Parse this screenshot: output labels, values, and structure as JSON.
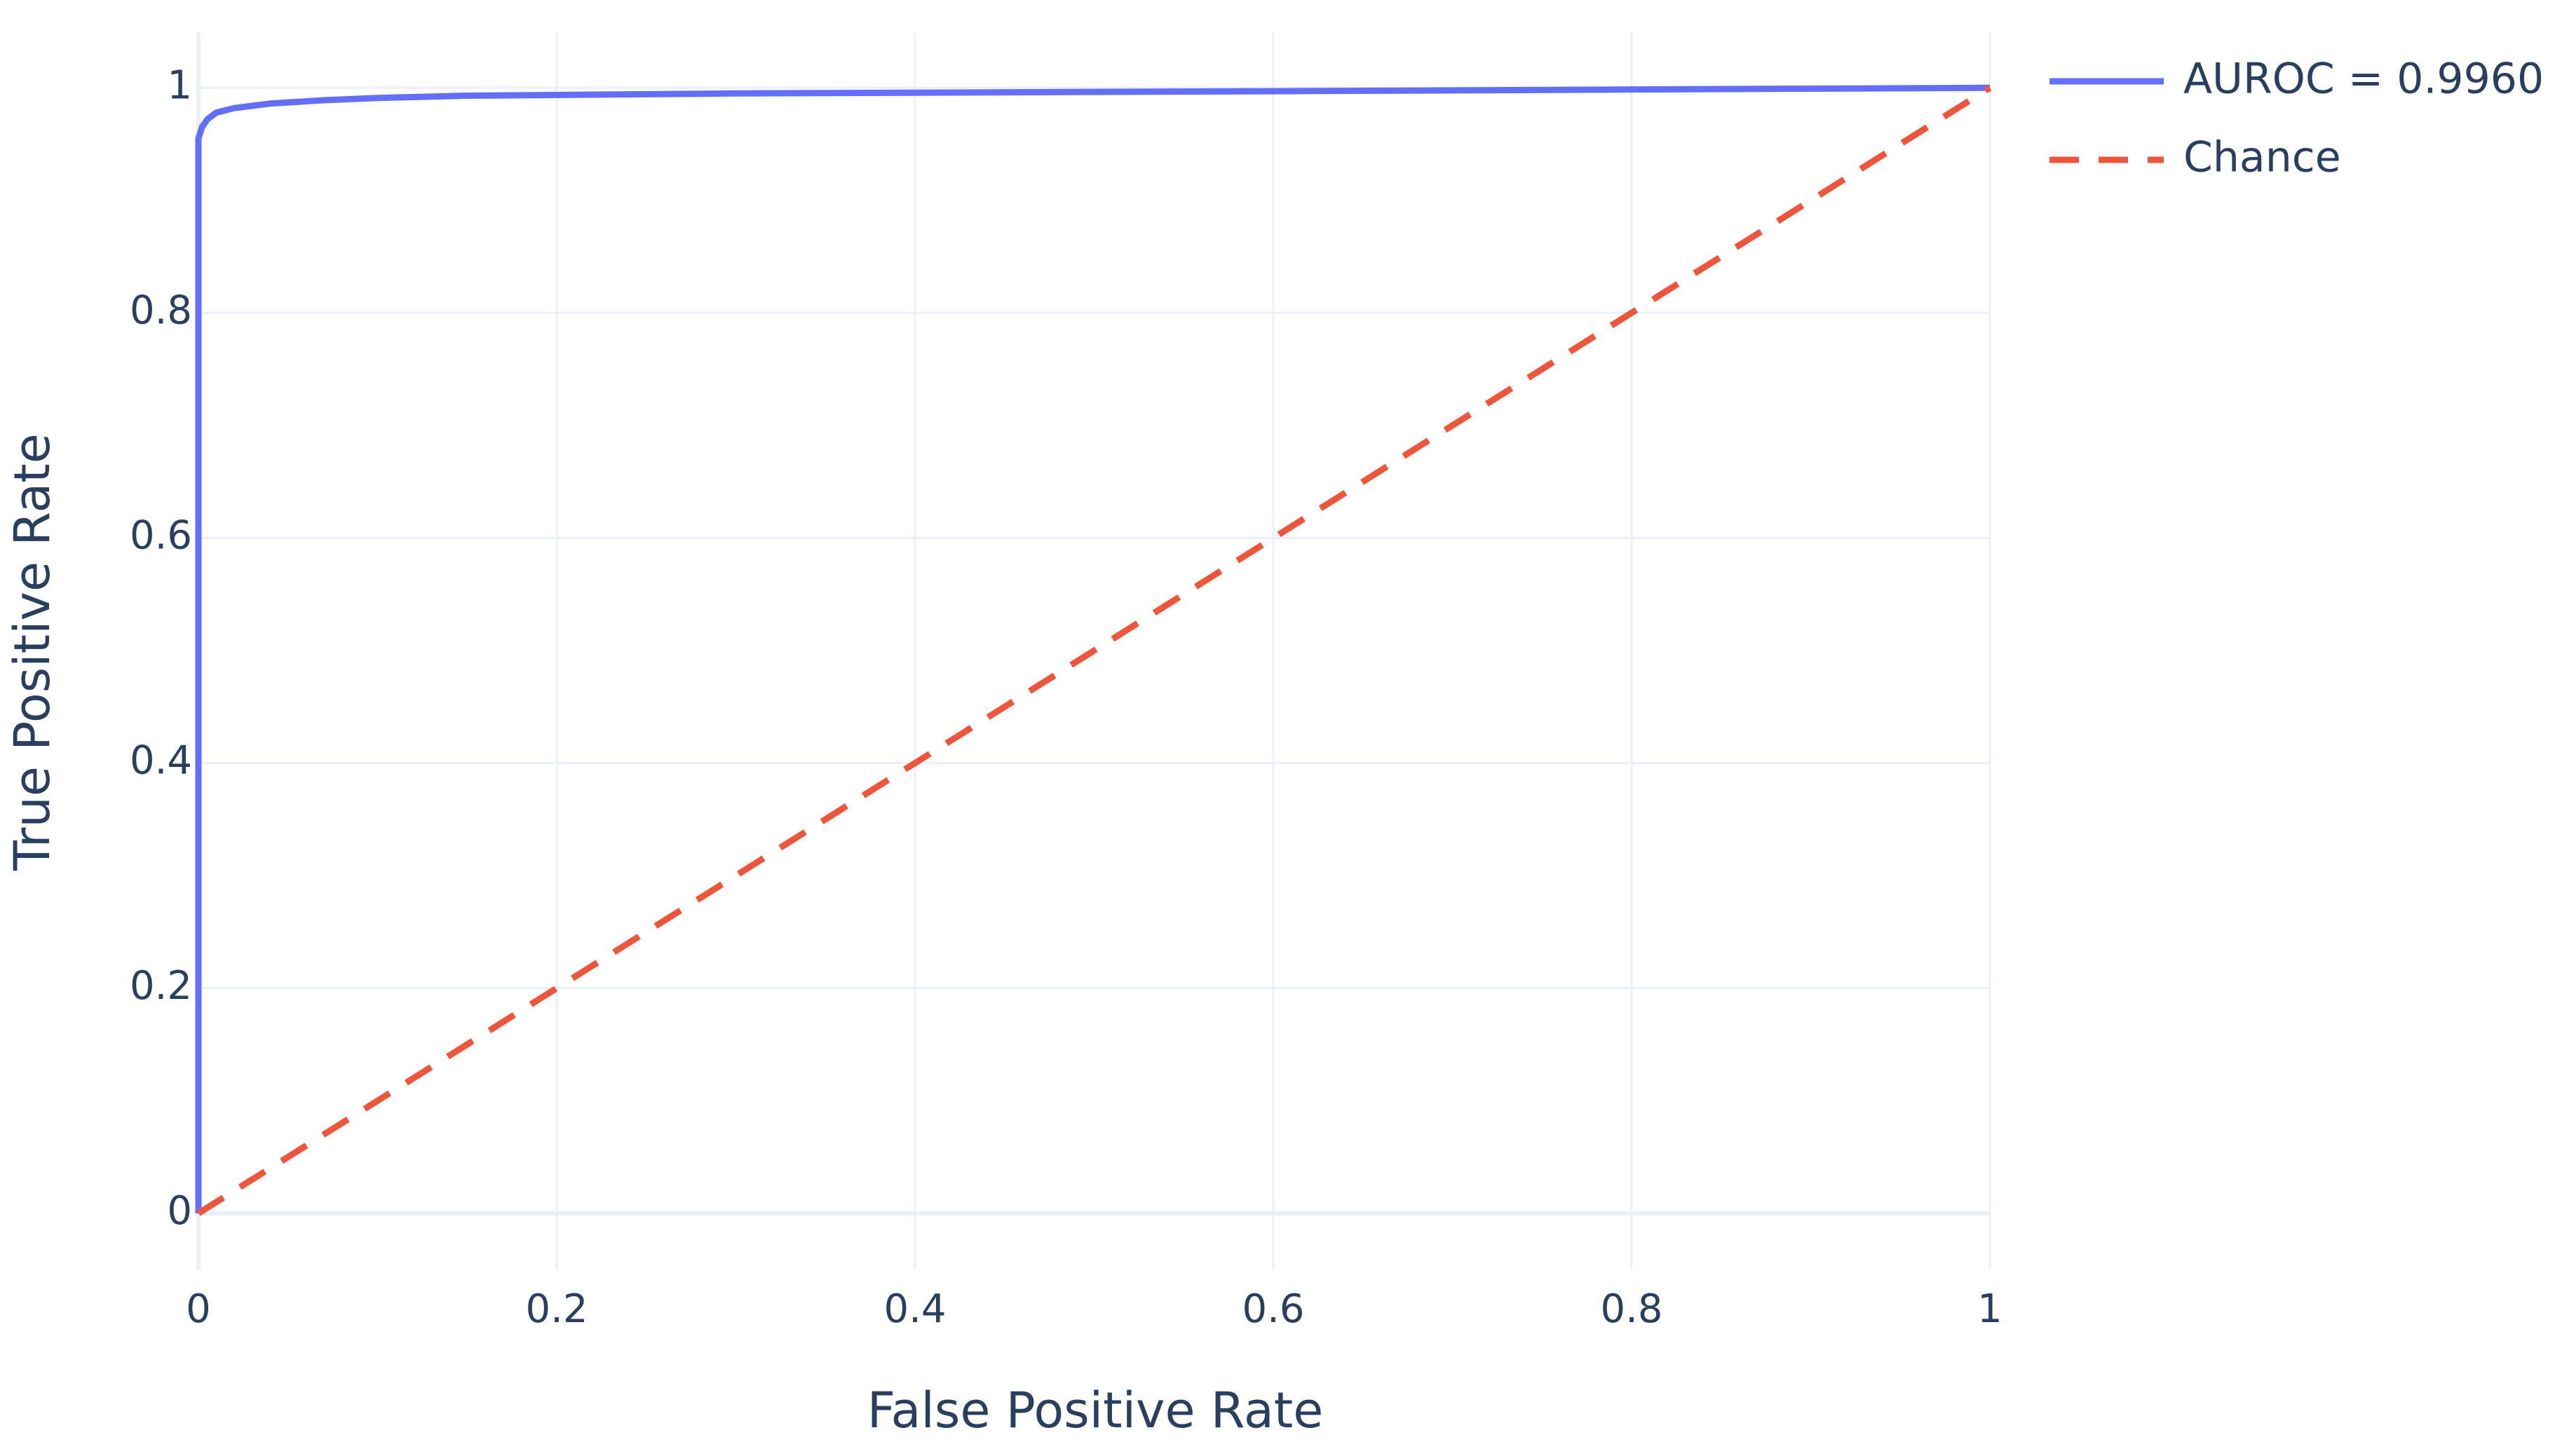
{
  "chart_data": {
    "type": "line",
    "x_label": "False Positive Rate",
    "y_label": "True Positive Rate",
    "series": [
      {
        "name": "AUROC = 0.9960",
        "color": "#636efa",
        "line_style": "solid",
        "x": [
          0,
          0,
          0.002,
          0.005,
          0.01,
          0.02,
          0.04,
          0.07,
          0.1,
          0.15,
          0.3,
          0.6,
          1
        ],
        "values": [
          0,
          0.955,
          0.965,
          0.972,
          0.978,
          0.982,
          0.986,
          0.989,
          0.991,
          0.993,
          0.995,
          0.997,
          1
        ]
      },
      {
        "name": "Chance",
        "color": "#ef553b",
        "line_style": "dash",
        "x": [
          0,
          1
        ],
        "values": [
          0,
          1
        ]
      }
    ],
    "xlim": [
      0,
      1
    ],
    "ylim": [
      -0.05,
      1.05
    ],
    "xticks": [
      0,
      0.2,
      0.4,
      0.6,
      0.8,
      1
    ],
    "yticks": [
      0,
      0.2,
      0.4,
      0.6,
      0.8,
      1
    ],
    "grid": true,
    "legend": "outside-top-right"
  }
}
